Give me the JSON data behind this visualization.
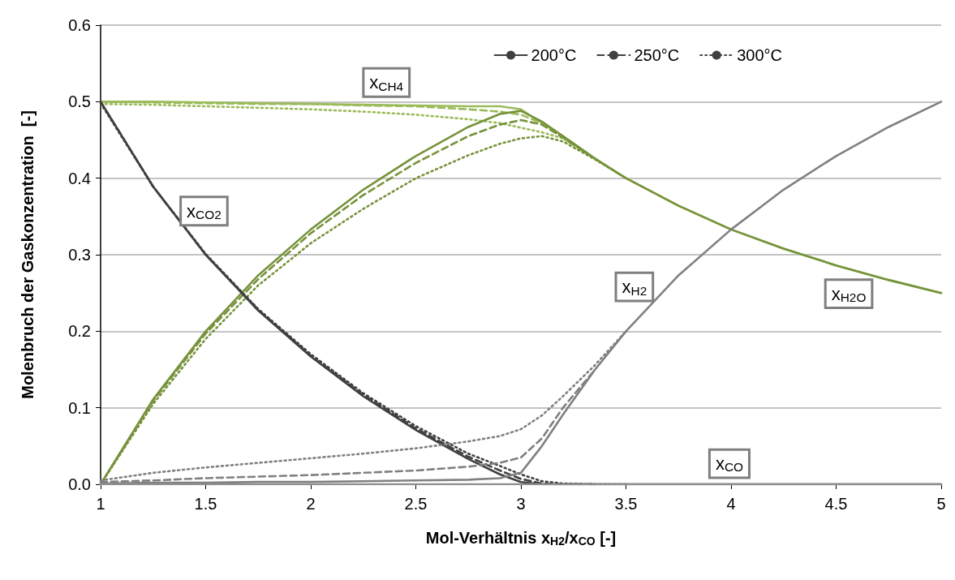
{
  "chart_data": {
    "type": "line",
    "xlabel": "Mol-Verhältnis x$_{H2}$/x$_{CO}$ [-]",
    "ylabel": "Molenbruch der Gaskonzentration  [-]",
    "x": [
      1,
      1.25,
      1.5,
      1.75,
      2,
      2.25,
      2.5,
      2.75,
      2.9,
      3,
      3.1,
      3.2,
      3.35,
      3.5,
      3.75,
      4,
      4.25,
      4.5,
      4.75,
      5
    ],
    "xlim": [
      1,
      5
    ],
    "xticks": [
      1,
      1.5,
      2,
      2.5,
      3,
      3.5,
      4,
      4.5,
      5
    ],
    "ylim": [
      0,
      0.6
    ],
    "yticks": [
      {
        "value": 0,
        "label": "0.0"
      },
      {
        "value": 0.1,
        "label": "0.1"
      },
      {
        "value": 0.2,
        "label": "0.2"
      },
      {
        "value": 0.3,
        "label": "0.3"
      },
      {
        "value": 0.4,
        "label": "0.4"
      },
      {
        "value": 0.5,
        "label": "0.5"
      },
      {
        "value": 0.6,
        "label": "0.6"
      }
    ],
    "grid": "y",
    "marker": "none",
    "legend": "top right",
    "series": [
      {
        "color": "#9bbb59",
        "line_style": "solid",
        "values": [
          0.5,
          0.5,
          0.499,
          0.498,
          0.497,
          0.496,
          0.495,
          0.494,
          0.494,
          0.49,
          0.472,
          0.455,
          0.426,
          0.4,
          0.364,
          0.333,
          0.308,
          0.286,
          0.267,
          0.25
        ]
      },
      {
        "color": "#9bbb59",
        "line_style": "dashed",
        "x": [
          1,
          1.25,
          1.5,
          1.75,
          2,
          2.25,
          2.5,
          2.75,
          2.9,
          3,
          3.1,
          3.2,
          3.35
        ],
        "values": [
          0.5,
          0.499,
          0.498,
          0.497,
          0.497,
          0.495,
          0.494,
          0.49,
          0.487,
          0.483,
          0.472,
          0.455,
          0.426
        ]
      },
      {
        "color": "#9bbb59",
        "line_style": "dotted",
        "x": [
          1,
          1.25,
          1.5,
          1.75,
          2,
          2.25,
          2.5,
          2.75,
          2.9,
          3,
          3.1,
          3.2,
          3.35,
          3.5
        ],
        "values": [
          0.497,
          0.496,
          0.494,
          0.492,
          0.49,
          0.487,
          0.483,
          0.477,
          0.472,
          0.466,
          0.46,
          0.452,
          0.426,
          0.4
        ]
      },
      {
        "color": "#77933c",
        "line_style": "solid",
        "values": [
          0,
          0.111,
          0.2,
          0.273,
          0.333,
          0.385,
          0.429,
          0.467,
          0.484,
          0.488,
          0.474,
          0.455,
          0.426,
          0.4,
          0.364,
          0.333,
          0.308,
          0.286,
          0.267,
          0.25
        ]
      },
      {
        "color": "#77933c",
        "line_style": "dashed",
        "x": [
          1,
          1.25,
          1.5,
          1.75,
          2,
          2.25,
          2.5,
          2.75,
          2.9,
          3,
          3.1,
          3.2,
          3.35
        ],
        "values": [
          0,
          0.109,
          0.197,
          0.268,
          0.328,
          0.378,
          0.42,
          0.455,
          0.47,
          0.476,
          0.47,
          0.453,
          0.426
        ]
      },
      {
        "color": "#77933c",
        "line_style": "dotted",
        "x": [
          1,
          1.25,
          1.5,
          1.75,
          2,
          2.25,
          2.5,
          2.75,
          2.9,
          3,
          3.1,
          3.2,
          3.35,
          3.5
        ],
        "values": [
          0,
          0.105,
          0.19,
          0.26,
          0.315,
          0.36,
          0.4,
          0.43,
          0.445,
          0.452,
          0.455,
          0.448,
          0.425,
          0.4
        ]
      },
      {
        "name": "200°C",
        "color": "#404040",
        "line_style": "solid",
        "values": [
          0.5,
          0.389,
          0.3,
          0.227,
          0.167,
          0.115,
          0.071,
          0.033,
          0.013,
          0.003,
          0,
          0,
          0,
          0,
          0,
          0,
          0,
          0,
          0,
          0
        ]
      },
      {
        "name": "250°C",
        "color": "#404040",
        "line_style": "dashed",
        "x": [
          1,
          1.25,
          1.5,
          1.75,
          2,
          2.25,
          2.5,
          2.75,
          2.9,
          3,
          3.1,
          3.2,
          3.35
        ],
        "values": [
          0.5,
          0.389,
          0.3,
          0.228,
          0.168,
          0.117,
          0.073,
          0.036,
          0.018,
          0.007,
          0.001,
          0,
          0
        ]
      },
      {
        "name": "300°C",
        "color": "#404040",
        "line_style": "dotted",
        "x": [
          1,
          1.25,
          1.5,
          1.75,
          2,
          2.25,
          2.5,
          2.75,
          2.9,
          3,
          3.1,
          3.2,
          3.35,
          3.5
        ],
        "values": [
          0.498,
          0.389,
          0.301,
          0.229,
          0.17,
          0.119,
          0.076,
          0.04,
          0.024,
          0.013,
          0.004,
          0.001,
          0,
          0
        ]
      },
      {
        "color": "#808080",
        "line_style": "solid",
        "values": [
          0.001,
          0.002,
          0.002,
          0.003,
          0.003,
          0.004,
          0.005,
          0.006,
          0.008,
          0.015,
          0.05,
          0.091,
          0.149,
          0.2,
          0.273,
          0.333,
          0.385,
          0.429,
          0.467,
          0.5
        ]
      },
      {
        "color": "#808080",
        "line_style": "dashed",
        "x": [
          1,
          1.25,
          1.5,
          1.75,
          2,
          2.25,
          2.5,
          2.75,
          2.9,
          3,
          3.1,
          3.2,
          3.35
        ],
        "values": [
          0.003,
          0.005,
          0.008,
          0.01,
          0.012,
          0.015,
          0.018,
          0.023,
          0.028,
          0.035,
          0.06,
          0.1,
          0.149
        ]
      },
      {
        "color": "#808080",
        "line_style": "dotted",
        "x": [
          1,
          1.25,
          1.5,
          1.75,
          2,
          2.25,
          2.5,
          2.75,
          2.9,
          3,
          3.1,
          3.2,
          3.35,
          3.5
        ],
        "values": [
          0.005,
          0.015,
          0.022,
          0.028,
          0.034,
          0.04,
          0.047,
          0.056,
          0.063,
          0.072,
          0.09,
          0.115,
          0.155,
          0.2
        ]
      },
      {
        "color": "#909090",
        "line_style": "solid",
        "values": [
          0,
          0,
          0,
          0,
          0,
          0,
          0,
          0,
          0,
          0,
          0,
          0,
          0,
          0,
          0,
          0,
          0,
          0,
          0,
          0
        ]
      }
    ],
    "annotations": [
      "x$_{CH4}$",
      "x$_{CO2}$",
      "x$_{H2}$",
      "x$_{H2O}$",
      "x$_{CO}$"
    ]
  }
}
